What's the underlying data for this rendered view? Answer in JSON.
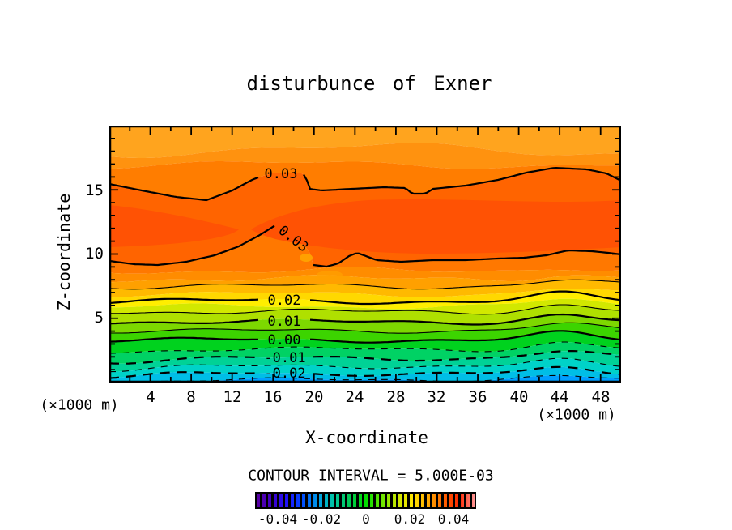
{
  "title": "disturbunce of Exner",
  "plot": {
    "x_axis": {
      "label": "X-coordinate",
      "unit_left": "(×1000 m)",
      "unit_right": "(×1000 m)",
      "ticks": [
        "4",
        "8",
        "12",
        "16",
        "20",
        "24",
        "28",
        "32",
        "36",
        "40",
        "44",
        "48"
      ]
    },
    "z_axis": {
      "label": "Z-coordinate",
      "ticks": [
        "5",
        "10",
        "15"
      ]
    },
    "contour_labels": [
      "0.03",
      "0.03",
      "0.02",
      "0.01",
      "0.00",
      "-0.01",
      "-0.02"
    ]
  },
  "caption": "CONTOUR INTERVAL = 5.000E-03",
  "colorbar": {
    "tick_labels": [
      "-0.04",
      "-0.02",
      "0",
      "0.02",
      "0.04"
    ],
    "colors": [
      "#5A00A0",
      "#3C00C8",
      "#1E14FF",
      "#0050FF",
      "#00A0E6",
      "#00C8A0",
      "#00C850",
      "#00DC00",
      "#64E600",
      "#C8E600",
      "#FFE600",
      "#FFAA00",
      "#FF6400",
      "#FF2800",
      "#FF9696"
    ]
  },
  "palette": {
    "bands": [
      "#FFA41E",
      "#FF920F",
      "#FF7D00",
      "#FF6400",
      "#FF7800",
      "#FF8C00",
      "#FFA000",
      "#FFB900",
      "#FFD800",
      "#FFEE00",
      "#D2E800",
      "#AFE000",
      "#7DD800",
      "#3CD400",
      "#00D21E",
      "#00D264",
      "#00D296",
      "#00D2C8",
      "#00BEE6",
      "#009EFF"
    ],
    "contour_core_dark": "#FF5204",
    "warm_spot": "#FFA000",
    "line_color": "#000000"
  },
  "chart_data": {
    "type": "heatmap",
    "variant": "filled contour plot with labeled contour lines",
    "title": "disturbunce of Exner",
    "xlabel": "X-coordinate",
    "ylabel": "Z-coordinate",
    "x_unit": "(×1000 m)",
    "z_unit": "(×1000 m)",
    "xlim": [
      0,
      50
    ],
    "zlim": [
      0,
      20
    ],
    "x_ticks": [
      4,
      8,
      12,
      16,
      20,
      24,
      28,
      32,
      36,
      40,
      44,
      48
    ],
    "z_ticks": [
      5,
      10,
      15
    ],
    "contour_interval": 0.005,
    "contour_interval_label": "CONTOUR INTERVAL = 5.000E-03",
    "labeled_contour_values": [
      0.03,
      0.03,
      0.02,
      0.01,
      0.0,
      -0.01,
      -0.02
    ],
    "line_conventions": {
      "positive": "solid",
      "negative": "dashed",
      "thick_lines_every": 0.01,
      "thin_lines_every": 0.005
    },
    "field_description": "Horizontally stratified Exner-function disturbance: maximum band (>0.03) between z≈9.5 and z≈15.5 (×1000 m), decreasing downward to ≈ -0.025 at the surface; small-amplitude undulations near x≈16-20 and x≈44-46",
    "vertical_profile": [
      {
        "z": 0,
        "value": -0.025
      },
      {
        "z": 1.0,
        "value": -0.02
      },
      {
        "z": 1.8,
        "value": -0.015
      },
      {
        "z": 2.6,
        "value": -0.01
      },
      {
        "z": 3.3,
        "value": -0.005
      },
      {
        "z": 4.0,
        "value": 0.0
      },
      {
        "z": 4.7,
        "value": 0.005
      },
      {
        "z": 5.5,
        "value": 0.01
      },
      {
        "z": 6.3,
        "value": 0.015
      },
      {
        "z": 7.2,
        "value": 0.02
      },
      {
        "z": 8.0,
        "value": 0.025
      },
      {
        "z": 9.5,
        "value": 0.03
      },
      {
        "z": 12.5,
        "value": 0.034
      },
      {
        "z": 15.5,
        "value": 0.03
      },
      {
        "z": 20,
        "value": 0.027
      }
    ],
    "colorbar": {
      "range": [
        -0.05,
        0.05
      ],
      "tick_values": [
        -0.04,
        -0.02,
        0,
        0.02,
        0.04
      ],
      "style": "striped rainbow (violet→blue→cyan→green→yellow→orange→red→pink)",
      "legend_position": "bottom center"
    },
    "grid": false
  }
}
